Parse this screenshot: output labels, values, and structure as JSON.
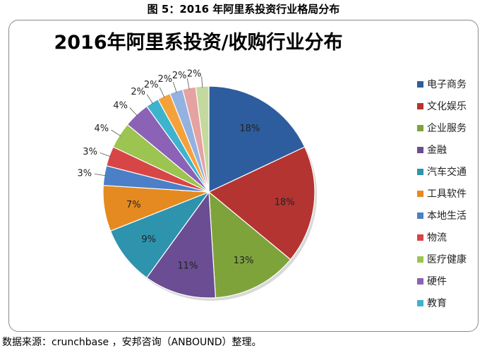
{
  "figure_title": "图 5：2016 年阿里系投资行业格局分布",
  "source_note": "数据来源：crunchbase ，安邦咨询（ANBOUND）整理。",
  "chart_data": {
    "type": "pie",
    "title": "2016年阿里系投资/收购行业分布",
    "legend_position": "right",
    "unit": "%",
    "slices": [
      {
        "label": "电子商务",
        "value": 18,
        "color": "#2d5d9e"
      },
      {
        "label": "文化娱乐",
        "value": 18,
        "color": "#b43431"
      },
      {
        "label": "企业服务",
        "value": 13,
        "color": "#7ea33b"
      },
      {
        "label": "金融",
        "value": 11,
        "color": "#6a4d92"
      },
      {
        "label": "汽车交通",
        "value": 9,
        "color": "#2e93ad"
      },
      {
        "label": "工具软件",
        "value": 7,
        "color": "#e58a20"
      },
      {
        "label": "本地生活",
        "value": 3,
        "color": "#4b7fc7"
      },
      {
        "label": "物流",
        "value": 3,
        "color": "#d84546"
      },
      {
        "label": "医疗健康",
        "value": 4,
        "color": "#9cc450"
      },
      {
        "label": "硬件",
        "value": 4,
        "color": "#8b62b5"
      },
      {
        "label": "教育",
        "value": 2,
        "color": "#3eb3ce"
      },
      {
        "label": "",
        "value": 2,
        "color": "#f5a13a"
      },
      {
        "label": "",
        "value": 2,
        "color": "#93b2e0"
      },
      {
        "label": "",
        "value": 2,
        "color": "#e5a2a1"
      },
      {
        "label": "",
        "value": 2,
        "color": "#c4d99e"
      }
    ]
  }
}
